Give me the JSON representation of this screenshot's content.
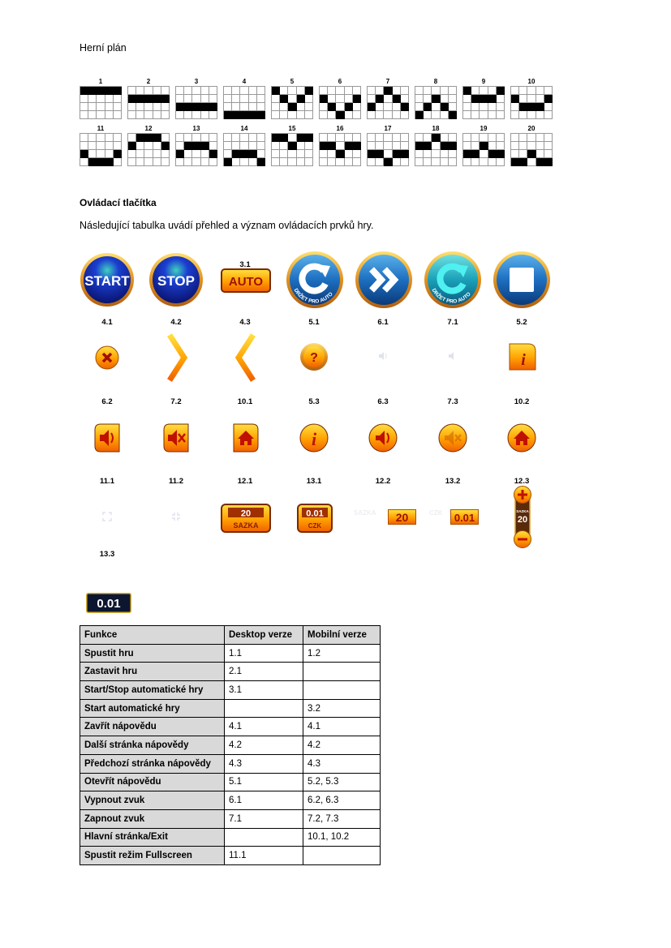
{
  "section1": {
    "title": "Herní plán"
  },
  "paylines": [
    {
      "num": "1",
      "rows": [
        0,
        0,
        0,
        0,
        0
      ]
    },
    {
      "num": "2",
      "rows": [
        1,
        1,
        1,
        1,
        1
      ]
    },
    {
      "num": "3",
      "rows": [
        2,
        2,
        2,
        2,
        2
      ]
    },
    {
      "num": "4",
      "rows": [
        3,
        3,
        3,
        3,
        3
      ]
    },
    {
      "num": "5",
      "rows": [
        0,
        1,
        2,
        1,
        0
      ]
    },
    {
      "num": "6",
      "rows": [
        1,
        2,
        3,
        2,
        1
      ]
    },
    {
      "num": "7",
      "rows": [
        2,
        1,
        0,
        1,
        2
      ]
    },
    {
      "num": "8",
      "rows": [
        3,
        2,
        1,
        2,
        3
      ]
    },
    {
      "num": "9",
      "rows": [
        0,
        1,
        1,
        1,
        0
      ]
    },
    {
      "num": "10",
      "rows": [
        1,
        2,
        2,
        2,
        1
      ]
    },
    {
      "num": "11",
      "rows": [
        2,
        3,
        3,
        3,
        2
      ]
    },
    {
      "num": "12",
      "rows": [
        1,
        0,
        0,
        0,
        1
      ]
    },
    {
      "num": "13",
      "rows": [
        2,
        1,
        1,
        1,
        2
      ]
    },
    {
      "num": "14",
      "rows": [
        3,
        2,
        2,
        2,
        3
      ]
    },
    {
      "num": "15",
      "rows": [
        0,
        0,
        1,
        0,
        0
      ]
    },
    {
      "num": "16",
      "rows": [
        1,
        1,
        2,
        1,
        1
      ]
    },
    {
      "num": "17",
      "rows": [
        2,
        2,
        3,
        2,
        2
      ]
    },
    {
      "num": "18",
      "rows": [
        1,
        1,
        0,
        1,
        1
      ]
    },
    {
      "num": "19",
      "rows": [
        2,
        2,
        1,
        2,
        2
      ]
    },
    {
      "num": "20",
      "rows": [
        3,
        3,
        2,
        3,
        3
      ]
    }
  ],
  "section2": {
    "title": "Ovládací tlačítka",
    "intro": "Následující tabulka uvádí přehled a význam ovládacích prvků hry."
  },
  "buttons": {
    "b1_1": {
      "id": "1.1",
      "text": "START"
    },
    "b2_1": {
      "id": "2.1",
      "text": "STOP"
    },
    "b3_1": {
      "id": "3.1",
      "text": "AUTO"
    },
    "b1_2": {
      "id": "1.2",
      "text": "DRŽET PRO AUTO"
    },
    "b2_2": {
      "id": "2.2"
    },
    "b3_2": {
      "id": "3.2",
      "text": "DRŽET PRO AUTO"
    },
    "b3_3": {
      "id": "3.3"
    },
    "b4_1": {
      "id": "4.1"
    },
    "b4_2": {
      "id": "4.2"
    },
    "b4_3": {
      "id": "4.3"
    },
    "b5_1": {
      "id": "5.1",
      "text": "?"
    },
    "b6_1": {
      "id": "6.1"
    },
    "b7_1": {
      "id": "7.1"
    },
    "b5_2": {
      "id": "5.2",
      "text": "i"
    },
    "b6_2": {
      "id": "6.2"
    },
    "b7_2": {
      "id": "7.2"
    },
    "b10_1": {
      "id": "10.1"
    },
    "b5_3": {
      "id": "5.3",
      "text": "i"
    },
    "b6_3": {
      "id": "6.3"
    },
    "b7_3": {
      "id": "7.3"
    },
    "b10_2": {
      "id": "10.2"
    },
    "b11_1": {
      "id": "11.1"
    },
    "b11_2": {
      "id": "11.2"
    },
    "b12_1": {
      "id": "12.1",
      "value": "20",
      "label": "SAZKA"
    },
    "b13_1": {
      "id": "13.1",
      "value": "0.01",
      "label": "CZK"
    },
    "b12_2": {
      "id": "12.2",
      "value": "20",
      "label": "SAZKA"
    },
    "b13_2": {
      "id": "13.2",
      "value": "0.01",
      "label": "CZK"
    },
    "b12_3": {
      "id": "12.3",
      "value": "20",
      "label": "SAZKA"
    },
    "b13_3": {
      "id": "13.3",
      "value": "0.01"
    }
  },
  "colors": {
    "blue": "#1a3fb0",
    "gold": "#f0a020",
    "orange": "#ff8c00",
    "brown": "#7a2a00"
  },
  "table": {
    "headers": [
      "Funkce",
      "Desktop verze",
      "Mobilní verze"
    ],
    "rows": [
      [
        "Spustit hru",
        "1.1",
        "1.2"
      ],
      [
        "Zastavit hru",
        "2.1",
        ""
      ],
      [
        "Start/Stop automatické hry",
        "3.1",
        ""
      ],
      [
        "Start automatické hry",
        "",
        "3.2"
      ],
      [
        "Zavřít nápovědu",
        "4.1",
        "4.1"
      ],
      [
        "Další stránka nápovědy",
        "4.2",
        "4.2"
      ],
      [
        "Předchozí stránka nápovědy",
        "4.3",
        "4.3"
      ],
      [
        "Otevřít nápovědu",
        "5.1",
        "5.2, 5.3"
      ],
      [
        "Vypnout zvuk",
        "6.1",
        "6.2, 6.3"
      ],
      [
        "Zapnout zvuk",
        "7.1",
        "7.2, 7.3"
      ],
      [
        "Hlavní stránka/Exit",
        "",
        "10.1, 10.2"
      ],
      [
        "Spustit režim Fullscreen",
        "11.1",
        ""
      ]
    ]
  }
}
